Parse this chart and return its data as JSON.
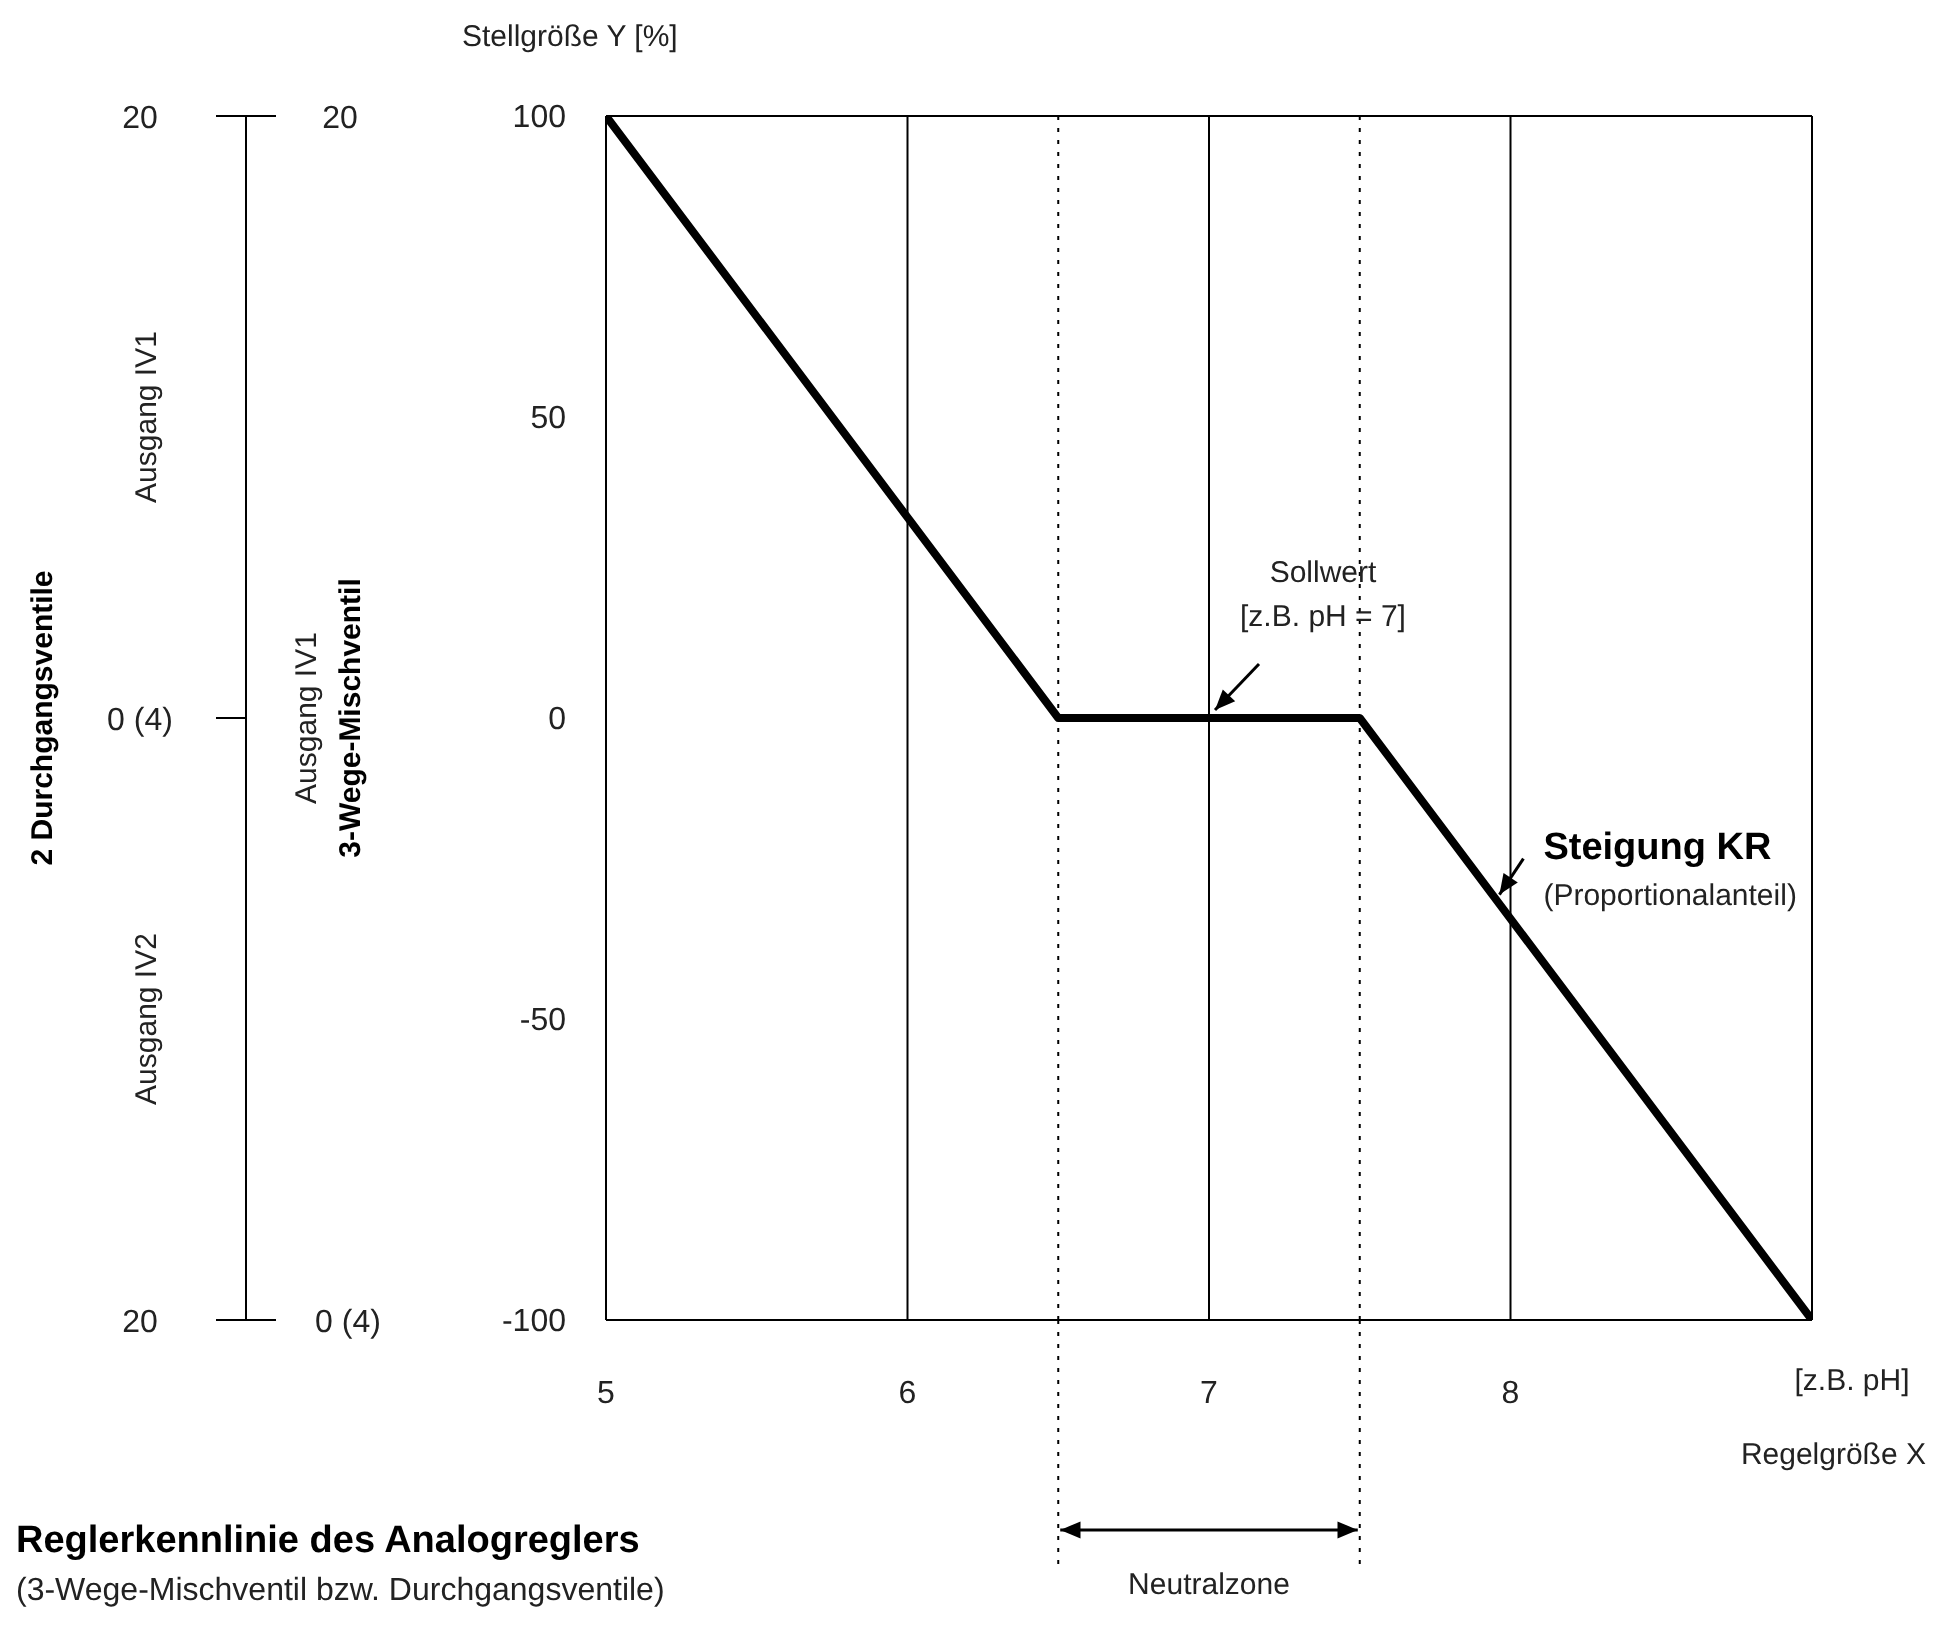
{
  "chart_data": {
    "type": "line",
    "title": "Reglerkennlinie des Analogreglers",
    "subtitle": "(3-Wege-Mischventil bzw. Durchgangsventile)",
    "xlabel": "Regelgröße X",
    "ylabel": "Stellgröße Y [%]",
    "x": [
      5,
      6.5,
      7.5,
      9
    ],
    "series": [
      {
        "color": "#000000",
        "values": [
          100,
          0,
          0,
          -100
        ]
      }
    ],
    "xlim": [
      5,
      9
    ],
    "xticks": [
      5,
      6,
      7,
      8
    ],
    "ylim": [
      -100,
      100
    ],
    "yticks": [
      -100,
      -50,
      0,
      50,
      100
    ],
    "grid": true,
    "marker": "none",
    "line_style": "solid",
    "ref_lines": [
      {
        "axis": "x",
        "value": 6.5,
        "line_style": "dotted",
        "color": "#000000"
      },
      {
        "axis": "x",
        "value": 7.5,
        "line_style": "dotted",
        "color": "#000000"
      }
    ],
    "annotations": [
      {
        "text": "Sollwert\n[z.B. pH = 7]",
        "x": 7,
        "y": 0
      },
      {
        "text": "Steigung KR",
        "x": 7.95,
        "y": -30
      },
      "(Proportionalanteil)",
      "[z.B. pH]",
      "Ausgang IV1",
      "Ausgang IV2",
      "Ausgang IV1",
      "Neutralzone",
      "2 Durchgangsventile",
      "3-Wege-Mischventil",
      "20",
      "0 (4)",
      "20",
      "20",
      "0 (4)"
    ]
  }
}
